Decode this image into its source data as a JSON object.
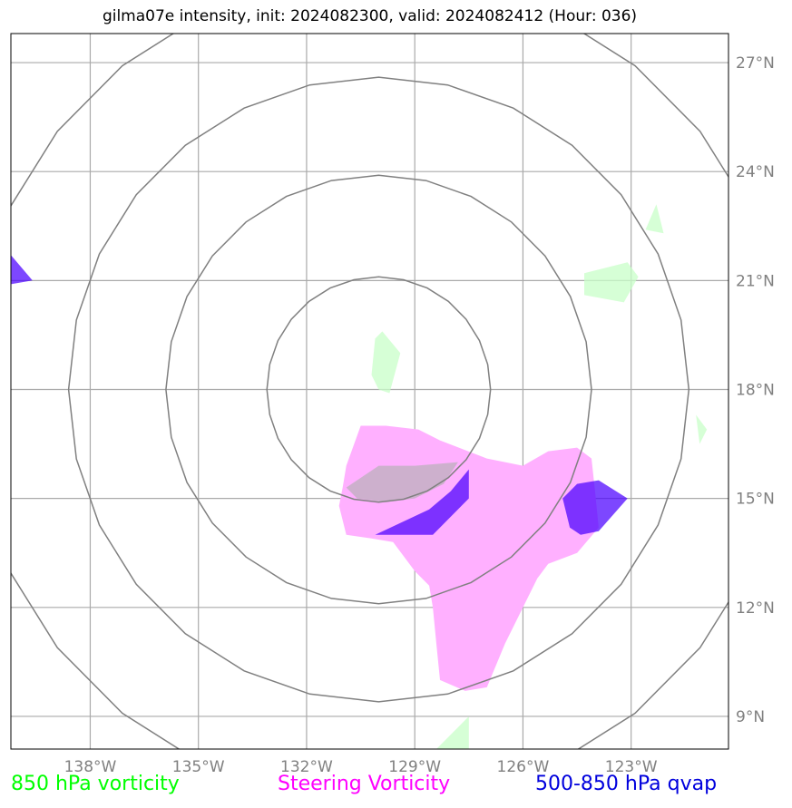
{
  "title": "gilma07e intensity, init: 2024082300, valid: 2024082412 (Hour: 036)",
  "map": {
    "lon_range": [
      -140.2,
      -120.3
    ],
    "lat_range": [
      8.1,
      27.8
    ],
    "lon_ticks": [
      {
        "value": -138,
        "label": "138°W"
      },
      {
        "value": -135,
        "label": "135°W"
      },
      {
        "value": -132,
        "label": "132°W"
      },
      {
        "value": -129,
        "label": "129°W"
      },
      {
        "value": -126,
        "label": "126°W"
      },
      {
        "value": -123,
        "label": "123°W"
      }
    ],
    "lat_ticks": [
      {
        "value": 9,
        "label": "9°N"
      },
      {
        "value": 12,
        "label": "12°N"
      },
      {
        "value": 15,
        "label": "15°N"
      },
      {
        "value": 18,
        "label": "18°N"
      },
      {
        "value": 21,
        "label": "21°N"
      },
      {
        "value": 24,
        "label": "24°N"
      },
      {
        "value": 27,
        "label": "27°N"
      }
    ],
    "grid": true,
    "gridline_color": "#aaaaaa",
    "range_ring_color": "#808080",
    "range_ring_center": {
      "lon": -130.0,
      "lat": 18.0
    },
    "range_ring_radii_deg": [
      3.1,
      5.9,
      8.6,
      11.4
    ],
    "layers": [
      {
        "name": "850 hPa vorticity",
        "color": "#c8ffc8",
        "opacity": 0.75,
        "polygons": [
          [
            [
              -129.9,
              19.6
            ],
            [
              -129.4,
              19.0
            ],
            [
              -129.7,
              17.9
            ],
            [
              -130.0,
              18.0
            ],
            [
              -130.2,
              18.4
            ],
            [
              -130.1,
              19.4
            ]
          ],
          [
            [
              -124.3,
              21.2
            ],
            [
              -123.1,
              21.5
            ],
            [
              -122.8,
              21.1
            ],
            [
              -123.2,
              20.4
            ],
            [
              -124.3,
              20.6
            ]
          ],
          [
            [
              -122.3,
              23.1
            ],
            [
              -122.1,
              22.3
            ],
            [
              -122.6,
              22.4
            ]
          ],
          [
            [
              -121.2,
              17.3
            ],
            [
              -120.9,
              16.9
            ],
            [
              -121.1,
              16.5
            ]
          ],
          [
            [
              -127.5,
              8.1
            ],
            [
              -128.4,
              8.1
            ],
            [
              -127.5,
              9.0
            ]
          ]
        ]
      },
      {
        "name": "Steering Vorticity",
        "color": "#ffb0ff",
        "opacity": 1,
        "polygons": [
          [
            [
              -130.5,
              17.0
            ],
            [
              -129.8,
              17.0
            ],
            [
              -128.9,
              16.9
            ],
            [
              -128.3,
              16.6
            ],
            [
              -127.0,
              16.1
            ],
            [
              -126.0,
              15.9
            ],
            [
              -125.3,
              16.3
            ],
            [
              -124.5,
              16.4
            ],
            [
              -124.1,
              16.1
            ],
            [
              -124.0,
              15.2
            ],
            [
              -123.9,
              14.2
            ],
            [
              -124.5,
              13.5
            ],
            [
              -125.3,
              13.2
            ],
            [
              -125.6,
              12.8
            ],
            [
              -126.1,
              11.8
            ],
            [
              -126.5,
              11.0
            ],
            [
              -127.0,
              9.8
            ],
            [
              -127.6,
              9.7
            ],
            [
              -128.3,
              10.0
            ],
            [
              -128.4,
              11.0
            ],
            [
              -128.5,
              12.0
            ],
            [
              -128.6,
              12.6
            ],
            [
              -129.0,
              13.0
            ],
            [
              -129.6,
              13.8
            ],
            [
              -130.2,
              13.9
            ],
            [
              -130.9,
              14.0
            ],
            [
              -131.1,
              14.8
            ],
            [
              -131.0,
              15.3
            ],
            [
              -130.9,
              15.9
            ]
          ]
        ]
      },
      {
        "name": "Steering grey overlay",
        "color": "#c8b0c8",
        "opacity": 0.9,
        "polygons": [
          [
            [
              -130.6,
              15.5
            ],
            [
              -130.0,
              15.9
            ],
            [
              -129.0,
              15.9
            ],
            [
              -127.8,
              16.0
            ],
            [
              -128.2,
              15.4
            ],
            [
              -129.0,
              15.0
            ],
            [
              -129.8,
              14.9
            ],
            [
              -130.6,
              15.0
            ],
            [
              -130.9,
              15.3
            ]
          ]
        ]
      },
      {
        "name": "500-850 hPa qvap",
        "color": "#4b00ff",
        "opacity": 0.72,
        "polygons": [
          [
            [
              -127.5,
              16.1
            ],
            [
              -127.5,
              15.0
            ],
            [
              -128.5,
              14.0
            ],
            [
              -129.1,
              14.0
            ],
            [
              -130.1,
              14.0
            ],
            [
              -128.6,
              14.7
            ],
            [
              -128.0,
              15.2
            ],
            [
              -127.5,
              15.8
            ]
          ],
          [
            [
              -124.5,
              15.4
            ],
            [
              -123.9,
              15.5
            ],
            [
              -123.1,
              15.0
            ],
            [
              -123.9,
              14.1
            ],
            [
              -124.4,
              14.0
            ],
            [
              -124.7,
              14.2
            ],
            [
              -124.9,
              15.0
            ]
          ],
          [
            [
              -140.2,
              21.7
            ],
            [
              -139.6,
              21.0
            ],
            [
              -140.2,
              20.9
            ]
          ]
        ]
      }
    ]
  },
  "legend": [
    {
      "label": "850 hPa vorticity",
      "color": "#00ff00"
    },
    {
      "label": "Steering Vorticity",
      "color": "#ff00ff"
    },
    {
      "label": "500-850 hPa qvap",
      "color": "#0000dd"
    }
  ]
}
